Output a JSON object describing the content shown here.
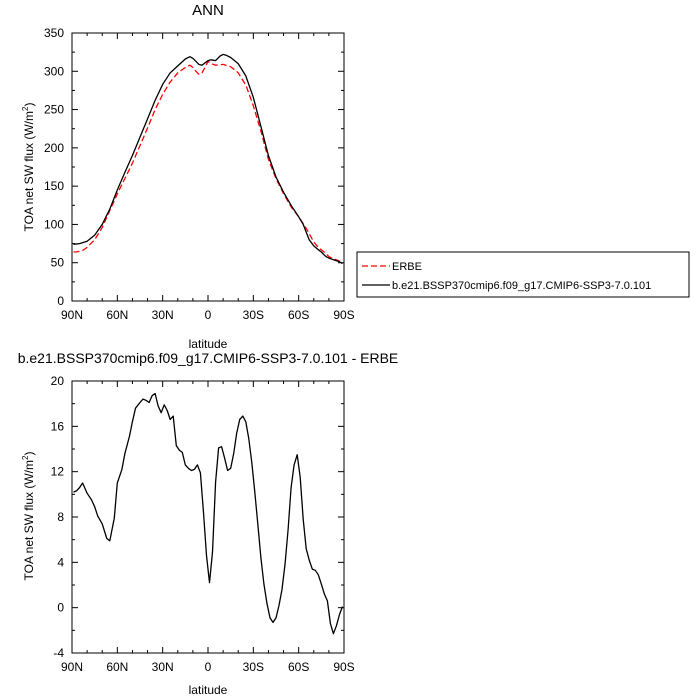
{
  "chart_data": [
    {
      "type": "line",
      "title": "ANN",
      "xlabel": "latitude",
      "ylabel": "TOA net SW flux (W/m",
      "ylabel_sup": "2",
      "ylabel_close": ")",
      "xlim": [
        90,
        -90
      ],
      "ylim": [
        0,
        350
      ],
      "xticks": [
        90,
        60,
        30,
        0,
        -30,
        -60,
        -90
      ],
      "xtick_labels": [
        "90N",
        "60N",
        "30N",
        "0",
        "30S",
        "60S",
        "90S"
      ],
      "yticks": [
        0,
        50,
        100,
        150,
        200,
        250,
        300,
        350
      ],
      "ytick_labels": [
        "0",
        "50",
        "100",
        "150",
        "200",
        "250",
        "300",
        "350"
      ],
      "legend_position": "right",
      "series": [
        {
          "name": "ERBE",
          "color": "#ff0000",
          "dash": true,
          "x": [
            89,
            87,
            85,
            83,
            80,
            75,
            70,
            65,
            60,
            55,
            50,
            45,
            40,
            35,
            30,
            25,
            20,
            15,
            12,
            10,
            8,
            6,
            4,
            2,
            0,
            -2,
            -5,
            -10,
            -15,
            -20,
            -25,
            -30,
            -35,
            -40,
            -45,
            -50,
            -55,
            -60,
            -65,
            -70,
            -73,
            -75,
            -78,
            -80,
            -83,
            -86,
            -89
          ],
          "y": [
            64,
            64,
            65,
            66,
            70,
            80,
            96,
            118,
            140,
            160,
            180,
            203,
            226,
            250,
            270,
            286,
            298,
            305,
            308,
            305,
            300,
            296,
            298,
            305,
            313,
            310,
            308,
            309,
            306,
            298,
            282,
            255,
            222,
            185,
            160,
            140,
            123,
            110,
            95,
            77,
            70,
            67,
            62,
            58,
            55,
            53,
            50
          ]
        },
        {
          "name": "b.e21.BSSP370cmip6.f09_g17.CMIP6-SSP3-7.0.101",
          "color": "#000000",
          "dash": false,
          "x": [
            89,
            85,
            80,
            75,
            70,
            65,
            60,
            55,
            50,
            45,
            40,
            35,
            30,
            25,
            20,
            15,
            12,
            10,
            8,
            6,
            4,
            2,
            0,
            -2,
            -5,
            -8,
            -10,
            -12,
            -15,
            -20,
            -25,
            -30,
            -35,
            -40,
            -45,
            -50,
            -55,
            -60,
            -63,
            -65,
            -67,
            -70,
            -73,
            -75,
            -78,
            -80,
            -83,
            -86,
            -89
          ],
          "y": [
            74,
            75,
            78,
            86,
            100,
            120,
            145,
            168,
            190,
            214,
            238,
            262,
            283,
            298,
            307,
            316,
            319,
            317,
            313,
            309,
            308,
            311,
            314,
            315,
            314,
            320,
            322,
            321,
            318,
            310,
            294,
            266,
            228,
            190,
            162,
            142,
            125,
            110,
            100,
            90,
            80,
            72,
            67,
            64,
            58,
            56,
            54,
            52,
            49
          ]
        }
      ]
    },
    {
      "type": "line",
      "title": "b.e21.BSSP370cmip6.f09_g17.CMIP6-SSP3-7.0.101 - ERBE",
      "xlabel": "latitude",
      "ylabel": "TOA net SW flux (W/m",
      "ylabel_sup": "2",
      "ylabel_close": ")",
      "xlim": [
        90,
        -90
      ],
      "ylim": [
        -4,
        20
      ],
      "xticks": [
        90,
        60,
        30,
        0,
        -30,
        -60,
        -90
      ],
      "xtick_labels": [
        "90N",
        "60N",
        "30N",
        "0",
        "30S",
        "60S",
        "90S"
      ],
      "yticks": [
        -4,
        0,
        4,
        8,
        12,
        16,
        20
      ],
      "ytick_labels": [
        "-4",
        "0",
        "4",
        "8",
        "12",
        "16",
        "20"
      ],
      "series": [
        {
          "color": "#000000",
          "dash": false,
          "x": [
            89,
            87,
            85,
            83,
            80,
            77,
            75,
            73,
            70,
            67,
            65,
            62,
            60,
            57,
            55,
            52,
            50,
            48,
            45,
            43,
            41,
            39,
            37,
            35,
            33,
            31,
            29,
            27,
            25,
            23,
            21,
            19,
            17,
            15,
            13,
            11,
            9,
            7,
            5,
            3,
            1,
            -1,
            -3,
            -5,
            -7,
            -9,
            -11,
            -13,
            -15,
            -17,
            -19,
            -21,
            -23,
            -25,
            -27,
            -29,
            -31,
            -33,
            -35,
            -37,
            -39,
            -41,
            -43,
            -45,
            -47,
            -49,
            -51,
            -53,
            -55,
            -57,
            -59,
            -61,
            -63,
            -65,
            -67,
            -69,
            -71,
            -73,
            -75,
            -77,
            -79,
            -81,
            -83,
            -85,
            -87,
            -89
          ],
          "y": [
            10.2,
            10.3,
            10.6,
            11.0,
            10.1,
            9.5,
            8.9,
            8.1,
            7.4,
            6.1,
            5.9,
            7.9,
            11.0,
            12.2,
            13.6,
            15.1,
            16.4,
            17.6,
            18.1,
            18.4,
            18.3,
            18.1,
            18.7,
            18.9,
            17.8,
            17.2,
            17.9,
            17.4,
            16.6,
            16.9,
            14.3,
            13.9,
            13.7,
            12.6,
            12.3,
            12.1,
            12.2,
            12.6,
            11.9,
            8.4,
            4.6,
            2.2,
            4.9,
            11.1,
            14.1,
            14.2,
            13.2,
            12.1,
            12.3,
            13.6,
            15.4,
            16.6,
            16.9,
            16.4,
            14.9,
            12.8,
            10.2,
            7.3,
            4.4,
            2.1,
            0.4,
            -0.9,
            -1.3,
            -0.9,
            0.2,
            1.6,
            3.9,
            6.9,
            10.6,
            12.6,
            13.5,
            11.5,
            7.8,
            5.2,
            4.2,
            3.4,
            3.3,
            2.9,
            2.1,
            1.2,
            0.6,
            -1.4,
            -2.3,
            -1.6,
            -0.6,
            0.1
          ]
        }
      ]
    }
  ]
}
